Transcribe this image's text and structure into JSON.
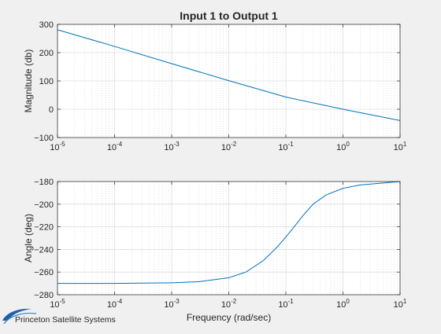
{
  "watermark": "Princeton Satellite Systems",
  "chart_data": [
    {
      "type": "line",
      "title": "Input 1 to Output 1",
      "xlabel": "",
      "ylabel": "Magnitude (db)",
      "xscale": "log",
      "xlim": [
        1e-05,
        10
      ],
      "ylim": [
        -100,
        300
      ],
      "xticks": [
        1e-05,
        0.0001,
        0.001,
        0.01,
        0.1,
        1,
        10
      ],
      "xtick_labels": [
        [
          "10",
          "-5"
        ],
        [
          "10",
          "-4"
        ],
        [
          "10",
          "-3"
        ],
        [
          "10",
          "-2"
        ],
        [
          "10",
          "-1"
        ],
        [
          "10",
          "0"
        ],
        [
          "10",
          "1"
        ]
      ],
      "yticks": [
        -100,
        0,
        100,
        200,
        300
      ],
      "ytick_labels": [
        "−100",
        "0",
        "100",
        "200",
        "300"
      ],
      "grid": true,
      "minor_grid": true,
      "series": [
        {
          "color": "#0072bd",
          "x": [
            1e-05,
            0.0001,
            0.001,
            0.01,
            0.1,
            1,
            10
          ],
          "y": [
            281,
            222,
            161,
            101,
            43,
            0,
            -40
          ]
        }
      ]
    },
    {
      "type": "line",
      "title": "",
      "xlabel": "Frequency (rad/sec)",
      "ylabel": "Angle (deg)",
      "xscale": "log",
      "xlim": [
        1e-05,
        10
      ],
      "ylim": [
        -280,
        -180
      ],
      "xticks": [
        1e-05,
        0.0001,
        0.001,
        0.01,
        0.1,
        1,
        10
      ],
      "xtick_labels": [
        [
          "10",
          "-5"
        ],
        [
          "10",
          "-4"
        ],
        [
          "10",
          "-3"
        ],
        [
          "10",
          "-2"
        ],
        [
          "10",
          "-1"
        ],
        [
          "10",
          "0"
        ],
        [
          "10",
          "1"
        ]
      ],
      "yticks": [
        -280,
        -260,
        -240,
        -220,
        -200,
        -180
      ],
      "ytick_labels": [
        "−280",
        "−260",
        "−240",
        "−220",
        "−200",
        "−180"
      ],
      "grid": true,
      "minor_grid": true,
      "series": [
        {
          "color": "#0072bd",
          "x": [
            1e-05,
            0.0001,
            0.001,
            0.003,
            0.01,
            0.02,
            0.04,
            0.07,
            0.1,
            0.15,
            0.2,
            0.3,
            0.5,
            1,
            2,
            10
          ],
          "y": [
            -270,
            -270,
            -269.5,
            -268.5,
            -265,
            -260,
            -250,
            -238,
            -229,
            -218,
            -210,
            -200,
            -192,
            -186,
            -183,
            -180
          ]
        }
      ]
    }
  ]
}
